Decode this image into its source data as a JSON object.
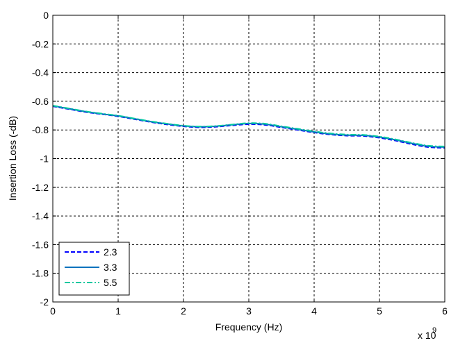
{
  "chart_data": {
    "type": "line",
    "title": "",
    "xlabel": "Frequency (Hz)",
    "ylabel": "Insertion Loss (-dB)",
    "x_exponent_label": "x 10",
    "x_exponent_power": "9",
    "xlim": [
      0,
      6
    ],
    "ylim": [
      -2,
      0
    ],
    "xticks": [
      0,
      1,
      2,
      3,
      4,
      5,
      6
    ],
    "xtick_labels": [
      "0",
      "1",
      "2",
      "3",
      "4",
      "5",
      "6"
    ],
    "yticks": [
      0,
      -0.2,
      -0.4,
      -0.6,
      -0.8,
      -1,
      -1.2,
      -1.4,
      -1.6,
      -1.8,
      -2
    ],
    "ytick_labels": [
      "0",
      "-0.2",
      "-0.4",
      "-0.6",
      "-0.8",
      "-1",
      "-1.2",
      "-1.4",
      "-1.6",
      "-1.8",
      "-2"
    ],
    "grid": true,
    "legend_position": "bottom-left",
    "x": [
      0,
      0.25,
      0.5,
      0.75,
      1,
      1.25,
      1.5,
      1.75,
      2,
      2.25,
      2.5,
      2.75,
      3,
      3.25,
      3.5,
      3.75,
      4,
      4.25,
      4.5,
      4.75,
      5,
      5.25,
      5.5,
      5.75,
      6
    ],
    "series": [
      {
        "name": "2.3",
        "color": "#0000ff",
        "style": "dashed",
        "values": [
          -0.635,
          -0.655,
          -0.675,
          -0.69,
          -0.705,
          -0.725,
          -0.745,
          -0.762,
          -0.775,
          -0.782,
          -0.778,
          -0.768,
          -0.76,
          -0.765,
          -0.782,
          -0.8,
          -0.818,
          -0.832,
          -0.84,
          -0.842,
          -0.855,
          -0.875,
          -0.9,
          -0.92,
          -0.925
        ]
      },
      {
        "name": "3.3",
        "color": "#0072bd",
        "style": "solid",
        "values": [
          -0.632,
          -0.652,
          -0.672,
          -0.688,
          -0.702,
          -0.722,
          -0.742,
          -0.758,
          -0.772,
          -0.778,
          -0.774,
          -0.764,
          -0.755,
          -0.76,
          -0.778,
          -0.796,
          -0.814,
          -0.828,
          -0.836,
          -0.838,
          -0.85,
          -0.87,
          -0.894,
          -0.914,
          -0.92
        ]
      },
      {
        "name": "5.5",
        "color": "#00c8a0",
        "style": "dashdot",
        "values": [
          -0.63,
          -0.65,
          -0.67,
          -0.686,
          -0.7,
          -0.72,
          -0.74,
          -0.756,
          -0.77,
          -0.776,
          -0.772,
          -0.762,
          -0.752,
          -0.756,
          -0.774,
          -0.792,
          -0.81,
          -0.824,
          -0.832,
          -0.834,
          -0.846,
          -0.866,
          -0.89,
          -0.91,
          -0.915
        ]
      }
    ]
  }
}
